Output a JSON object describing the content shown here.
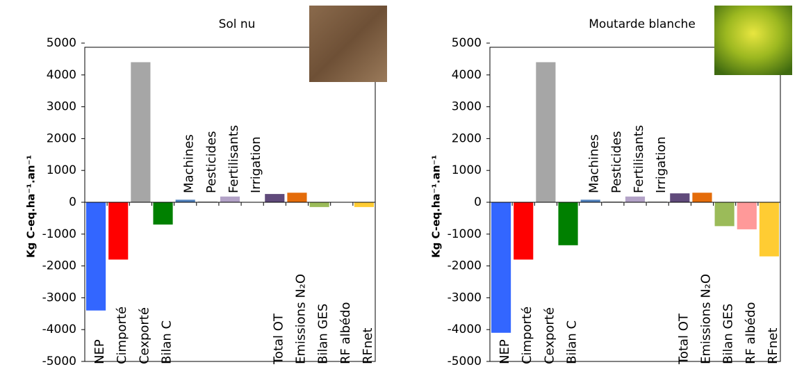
{
  "chart_data": [
    {
      "type": "bar",
      "title": "Sol nu",
      "ylabel": "Kg C-eq.ha⁻¹.an⁻¹",
      "categories": [
        "NEP",
        "Cimporté",
        "Cexporté",
        "Bilan C",
        "Machines",
        "Pesticides",
        "Fertilisants",
        "Irrigation",
        "Total OT",
        "Emissions N₂O",
        "Bilan GES",
        "RF albédo",
        "RFnet"
      ],
      "values": [
        -3400,
        -1800,
        4400,
        -700,
        80,
        20,
        180,
        0,
        260,
        300,
        -150,
        0,
        -150
      ],
      "colors": [
        "#3366ff",
        "#ff0000",
        "#a6a6a6",
        "#008000",
        "#4f81bd",
        "#7f7f7f",
        "#b3a2c7",
        "#7f7f7f",
        "#604a7b",
        "#e46c0a",
        "#9bbb59",
        "#ff9999",
        "#ffcc33"
      ],
      "label_colors": [
        "#3366ff",
        "#ff0000",
        "#7f7f7f",
        "#008000",
        "#000000",
        "#000000",
        "#000000",
        "#000000",
        "#604a7b",
        "#e46c0a",
        "#9bbb59",
        "#ff9999",
        "#ffcc00"
      ],
      "label_positions": [
        "bottom",
        "bottom",
        "bottom",
        "bottom",
        "top",
        "top",
        "top",
        "top",
        "bottom",
        "bottom",
        "bottom",
        "bottom",
        "bottom"
      ],
      "ylim": [
        -5000,
        5000
      ],
      "yticks": [
        -5000,
        -4000,
        -3000,
        -2000,
        -1000,
        0,
        1000,
        2000,
        3000,
        4000,
        5000
      ]
    },
    {
      "type": "bar",
      "title": "Moutarde blanche",
      "ylabel": "Kg C-eq.ha⁻¹.an⁻¹",
      "categories": [
        "NEP",
        "Cimporté",
        "Cexporté",
        "Bilan C",
        "Machines",
        "Pesticides",
        "Fertilisants",
        "Irrigation",
        "Total OT",
        "Emissions N₂O",
        "Bilan GES",
        "RF albédo",
        "RFnet"
      ],
      "values": [
        -4100,
        -1800,
        4400,
        -1350,
        80,
        20,
        180,
        20,
        280,
        300,
        -750,
        -850,
        -1700
      ],
      "colors": [
        "#3366ff",
        "#ff0000",
        "#a6a6a6",
        "#008000",
        "#4f81bd",
        "#7f7f7f",
        "#b3a2c7",
        "#7f7f7f",
        "#604a7b",
        "#e46c0a",
        "#9bbb59",
        "#ff9999",
        "#ffcc33"
      ],
      "label_colors": [
        "#3366ff",
        "#ff0000",
        "#7f7f7f",
        "#008000",
        "#000000",
        "#000000",
        "#000000",
        "#000000",
        "#604a7b",
        "#e46c0a",
        "#9bbb59",
        "#ff9999",
        "#ffcc00"
      ],
      "label_positions": [
        "bottom",
        "bottom",
        "bottom",
        "bottom",
        "top",
        "top",
        "top",
        "top",
        "bottom",
        "bottom",
        "bottom",
        "bottom",
        "bottom"
      ],
      "ylim": [
        -5000,
        5000
      ],
      "yticks": [
        -5000,
        -4000,
        -3000,
        -2000,
        -1000,
        0,
        1000,
        2000,
        3000,
        4000,
        5000
      ]
    }
  ]
}
